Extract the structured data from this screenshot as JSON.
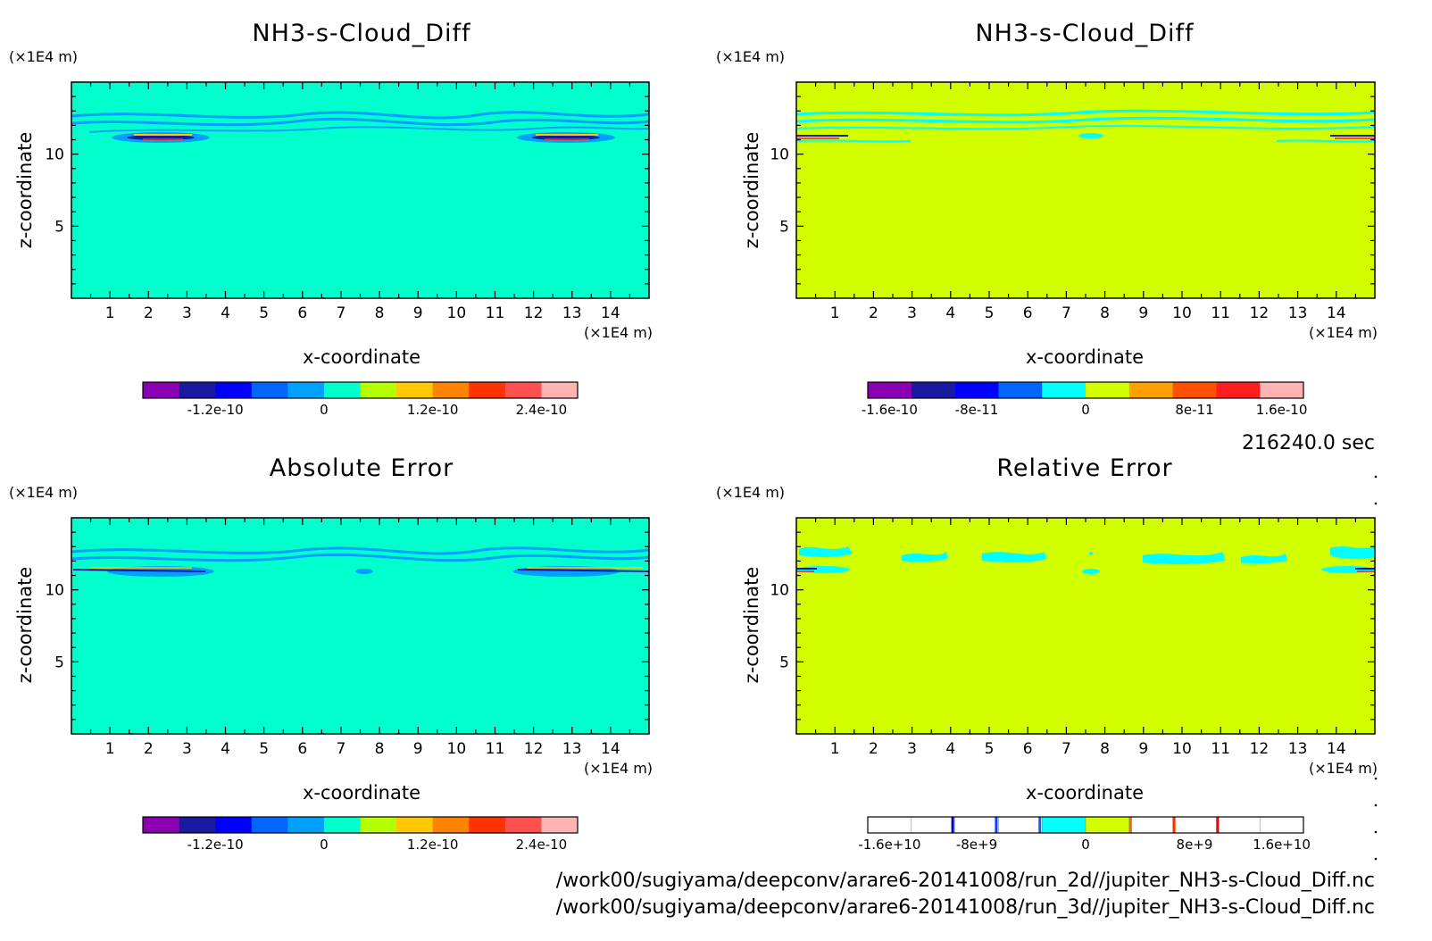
{
  "chart_data": [
    {
      "type": "heatmap",
      "title": "NH3-s-Cloud_Diff",
      "xlabel": "x-coordinate",
      "ylabel": "z-coordinate",
      "x_unit": "(×1E4 m)",
      "y_unit": "(×1E4 m)",
      "xlim": [
        0,
        15
      ],
      "ylim": [
        0,
        15
      ],
      "x_ticks": [
        1,
        2,
        3,
        4,
        5,
        6,
        7,
        8,
        9,
        10,
        11,
        12,
        13,
        14
      ],
      "y_ticks": [
        5,
        10
      ],
      "background_color": "#00ffcc",
      "colorbar": {
        "colors": [
          "#8c00b4",
          "#1a1aa0",
          "#0000ff",
          "#0066ff",
          "#00a0ff",
          "#00ffcc",
          "#b4ff00",
          "#ffc800",
          "#ff8200",
          "#ff3200",
          "#ff5050",
          "#ffb4b4"
        ],
        "tick_labels": [
          "-1.2e-10",
          "0",
          "1.2e-10",
          "2.4e-10"
        ]
      }
    },
    {
      "type": "heatmap",
      "title": "NH3-s-Cloud_Diff",
      "xlabel": "x-coordinate",
      "ylabel": "z-coordinate",
      "x_unit": "(×1E4 m)",
      "y_unit": "(×1E4 m)",
      "xlim": [
        0,
        15
      ],
      "ylim": [
        0,
        15
      ],
      "x_ticks": [
        1,
        2,
        3,
        4,
        5,
        6,
        7,
        8,
        9,
        10,
        11,
        12,
        13,
        14
      ],
      "y_ticks": [
        5,
        10
      ],
      "background_color": "#d2ff00",
      "colorbar": {
        "colors": [
          "#8c00b4",
          "#1a1aa0",
          "#0000ff",
          "#0066ff",
          "#00ffff",
          "#d2ff00",
          "#ffa000",
          "#ff5000",
          "#ff1e1e",
          "#ffb4b4"
        ],
        "tick_labels": [
          "-1.6e-10",
          "-8e-11",
          "0",
          "8e-11",
          "1.6e-10"
        ]
      }
    },
    {
      "type": "heatmap",
      "title": "Absolute Error",
      "xlabel": "x-coordinate",
      "ylabel": "z-coordinate",
      "x_unit": "(×1E4 m)",
      "y_unit": "(×1E4 m)",
      "xlim": [
        0,
        15
      ],
      "ylim": [
        0,
        15
      ],
      "x_ticks": [
        1,
        2,
        3,
        4,
        5,
        6,
        7,
        8,
        9,
        10,
        11,
        12,
        13,
        14
      ],
      "y_ticks": [
        5,
        10
      ],
      "background_color": "#00ffcc",
      "colorbar": {
        "colors": [
          "#8c00b4",
          "#1a1aa0",
          "#0000ff",
          "#0066ff",
          "#00a0ff",
          "#00ffcc",
          "#b4ff00",
          "#ffc800",
          "#ff8200",
          "#ff3200",
          "#ff5050",
          "#ffb4b4"
        ],
        "tick_labels": [
          "-1.2e-10",
          "0",
          "1.2e-10",
          "2.4e-10"
        ]
      }
    },
    {
      "type": "heatmap",
      "title": "Relative Error",
      "xlabel": "x-coordinate",
      "ylabel": "z-coordinate",
      "x_unit": "(×1E4 m)",
      "y_unit": "(×1E4 m)",
      "xlim": [
        0,
        15
      ],
      "ylim": [
        0,
        15
      ],
      "x_ticks": [
        1,
        2,
        3,
        4,
        5,
        6,
        7,
        8,
        9,
        10,
        11,
        12,
        13,
        14
      ],
      "y_ticks": [
        5,
        10
      ],
      "background_color": "#d2ff00",
      "colorbar": {
        "colors": [
          "#ffffff",
          "#ffffff",
          "#ffffff",
          "#ffffff",
          "#00ffff",
          "#d2ff00",
          "#ffffff",
          "#ffffff",
          "#ffffff",
          "#ffffff"
        ],
        "marker_colors": [
          "#0000aa",
          "#0044ff",
          "#0066ff",
          "#ff6400",
          "#ff3200",
          "#ff0000"
        ],
        "tick_labels": [
          "-1.6e+10",
          "-8e+9",
          "0",
          "8e+9",
          "1.6e+10"
        ]
      }
    }
  ],
  "time_label": "216240.0 sec",
  "file_paths": [
    "/work00/sugiyama/deepconv/arare6-20141008/run_2d//jupiter_NH3-s-Cloud_Diff.nc",
    "/work00/sugiyama/deepconv/arare6-20141008/run_3d//jupiter_NH3-s-Cloud_Diff.nc"
  ]
}
